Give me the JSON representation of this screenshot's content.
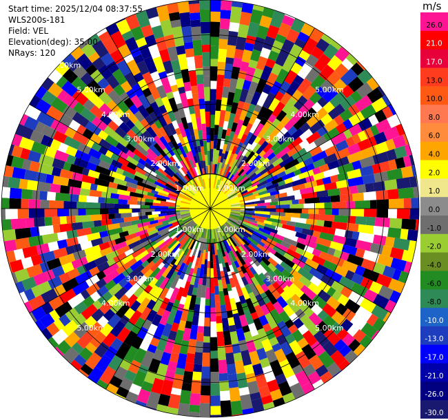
{
  "info": {
    "start_time": "Start time: 2025/12/04 08:37:55",
    "station": "WLS200s-181",
    "field": "Field: VEL",
    "elevation": "Elevation(deg): 35.00",
    "nrays": "NRays: 120"
  },
  "chart_data": {
    "type": "heatmap",
    "projection": "polar-ppi",
    "field": "VEL",
    "n_rays": 120,
    "elevation_deg": 35.0,
    "max_range_km": 6.0,
    "range_rings_km": [
      1,
      2,
      3,
      4,
      5,
      6
    ],
    "ring_labels": [
      "1.00km",
      "2.00km",
      "3.00km",
      "4.00km",
      "5.00km",
      "6.00km"
    ],
    "colorbar": {
      "unit": "m/s",
      "tick_labels": [
        "26.0",
        "21.0",
        "17.0",
        "13.0",
        "10.0",
        "8.0",
        "6.0",
        "4.0",
        "2.0",
        "1.0",
        "0.0",
        "-1.0",
        "-2.0",
        "-4.0",
        "-6.0",
        "-8.0",
        "-10.0",
        "-13.0",
        "-17.0",
        "-21.0",
        "-26.0",
        "-30.0"
      ],
      "colors": [
        "#ff1493",
        "#ff0000",
        "#e8003a",
        "#ff3c1e",
        "#ff5a14",
        "#ff7850",
        "#ff8c3c",
        "#ffa500",
        "#ffff00",
        "#f0e68c",
        "#8c8c8c",
        "#6e6e6e",
        "#9acd32",
        "#6b8e23",
        "#228b22",
        "#2e8b57",
        "#1e64c8",
        "#1e3cbe",
        "#0000ff",
        "#0000aa",
        "#000080",
        "#191970"
      ]
    }
  }
}
